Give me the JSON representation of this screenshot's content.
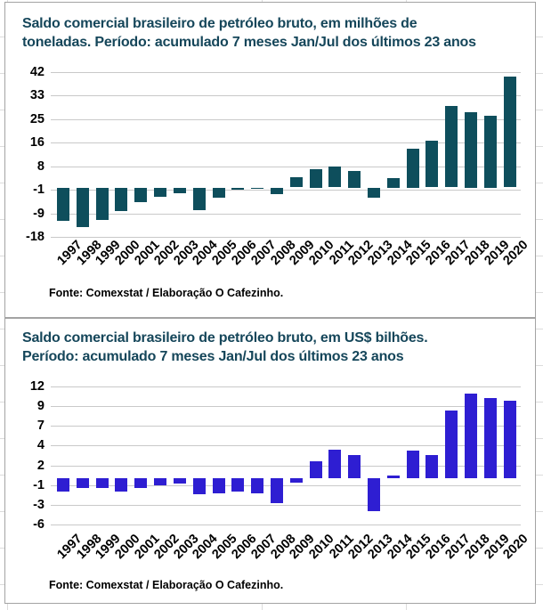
{
  "theme": {
    "title_color": "#15465a",
    "grid_color": "#c9c9c9",
    "panel_border_color": "#a3a3a3",
    "axis_text_color": "#000000",
    "tonnes_bar_color": "#0e4e5c",
    "usd_bar_color": "#2e1ed2"
  },
  "chart_data": [
    {
      "type": "bar",
      "title": "Saldo comercial brasileiro de petróleo bruto, em milhões de toneladas. Período: acumulado 7 meses Jan/Jul dos últimos 23 anos",
      "title_lines": [
        "Saldo comercial brasileiro de petróleo bruto, em milhões de",
        "toneladas. Período: acumulado 7 meses Jan/Jul dos últimos 23 anos"
      ],
      "categories": [
        "1997",
        "1998",
        "1999",
        "2000",
        "2001",
        "2002",
        "2003",
        "2004",
        "2005",
        "2006",
        "2007",
        "2008",
        "2009",
        "2010",
        "2011",
        "2012",
        "2013",
        "2014",
        "2015",
        "2016",
        "2017",
        "2018",
        "2019",
        "2020"
      ],
      "values": [
        -12.3,
        -14.4,
        -11.7,
        -8.5,
        -5.4,
        -3.4,
        -2.0,
        -8.3,
        -3.6,
        -0.7,
        -0.4,
        -2.3,
        3.6,
        6.6,
        7.7,
        6.0,
        -3.7,
        3.4,
        14.1,
        16.9,
        29.6,
        27.4,
        26.1,
        40.4
      ],
      "yticks": [
        42,
        33,
        25,
        16,
        8,
        -1,
        -9,
        -18
      ],
      "ylim": [
        -18,
        42
      ],
      "xlabel": "",
      "ylabel": "",
      "grid": true,
      "legend": "none",
      "bar_color": "#0e4e5c",
      "source": "Fonte: Comexstat / Elaboração O Cafezinho."
    },
    {
      "type": "bar",
      "title": "Saldo comercial brasileiro de petróleo bruto, em US$ bilhões. Período: acumulado 7 meses Jan/Jul dos últimos 23 anos",
      "title_lines": [
        "Saldo comercial brasileiro de petróleo bruto, em US$ bilhões.",
        "Período: acumulado 7 meses Jan/Jul dos últimos 23 anos"
      ],
      "categories": [
        "1997",
        "1998",
        "1999",
        "2000",
        "2001",
        "2002",
        "2003",
        "2004",
        "2005",
        "2006",
        "2007",
        "2008",
        "2009",
        "2010",
        "2011",
        "2012",
        "2013",
        "2014",
        "2015",
        "2016",
        "2017",
        "2018",
        "2019",
        "2020"
      ],
      "values": [
        -1.7,
        -1.3,
        -1.2,
        -1.7,
        -1.3,
        -0.9,
        -0.7,
        -2.1,
        -2.0,
        -1.7,
        -2.0,
        -3.2,
        -0.6,
        2.3,
        3.8,
        3.1,
        -4.3,
        0.4,
        3.6,
        3.1,
        8.9,
        11.1,
        10.5,
        10.1
      ],
      "yticks": [
        12,
        9,
        7,
        4,
        2,
        -1,
        -3,
        -6
      ],
      "ylim": [
        -6,
        12
      ],
      "xlabel": "",
      "ylabel": "",
      "grid": true,
      "legend": "none",
      "bar_color": "#2e1ed2",
      "source": "Fonte: Comexstat / Elaboração O Cafezinho."
    }
  ]
}
